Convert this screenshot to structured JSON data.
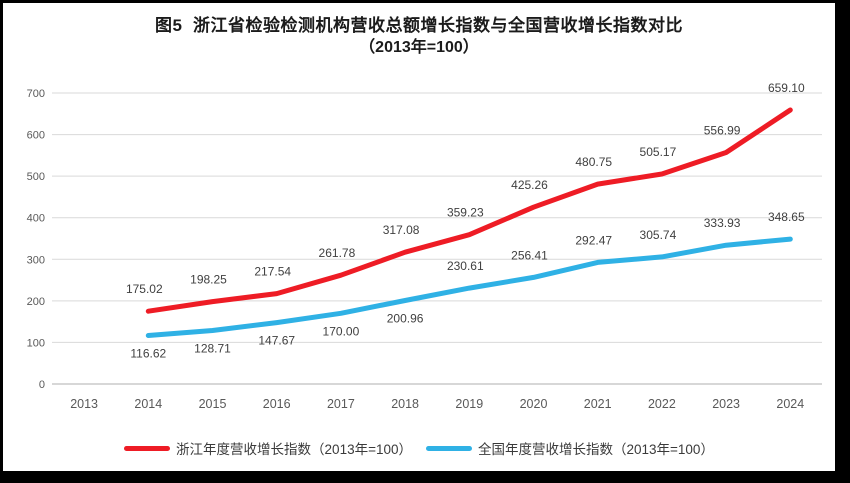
{
  "frame": {
    "border_color": "#000000",
    "background": "#ffffff"
  },
  "chart_data": {
    "type": "line",
    "title_line1": "图5  浙江省检验检测机构营收总额增长指数与全国营收增长指数对比",
    "title_line2": "（2013年=100）",
    "categories": [
      "2013",
      "2014",
      "2015",
      "2016",
      "2017",
      "2018",
      "2019",
      "2020",
      "2021",
      "2022",
      "2023",
      "2024"
    ],
    "series": [
      {
        "name": "浙江年度营收增长指数（2013年=100）",
        "color": "#ee1c25",
        "values": [
          null,
          175.02,
          198.25,
          217.54,
          261.78,
          317.08,
          359.23,
          425.26,
          480.75,
          505.17,
          556.99,
          659.1
        ],
        "label_sides": [
          null,
          "above",
          "above",
          "above",
          "above",
          "above",
          "above",
          "above",
          "above",
          "above",
          "above",
          "above"
        ]
      },
      {
        "name": "全国年度营收增长指数（2013年=100）",
        "color": "#2fb1e5",
        "values": [
          null,
          116.62,
          128.71,
          147.67,
          170.0,
          200.96,
          230.61,
          256.41,
          292.47,
          305.74,
          333.93,
          348.65
        ],
        "label_sides": [
          null,
          "below",
          "below",
          "below",
          "below",
          "below",
          "above",
          "above",
          "above",
          "above",
          "above",
          "above"
        ]
      }
    ],
    "y_axis": {
      "min": 0,
      "max": 700,
      "step": 100
    },
    "grid": "horizontal",
    "legend_position": "bottom",
    "colors": {
      "gridline": "#d9d9d9",
      "axis_line": "#bfbfbf",
      "tick_label": "#595959",
      "data_label": "#404040"
    }
  }
}
